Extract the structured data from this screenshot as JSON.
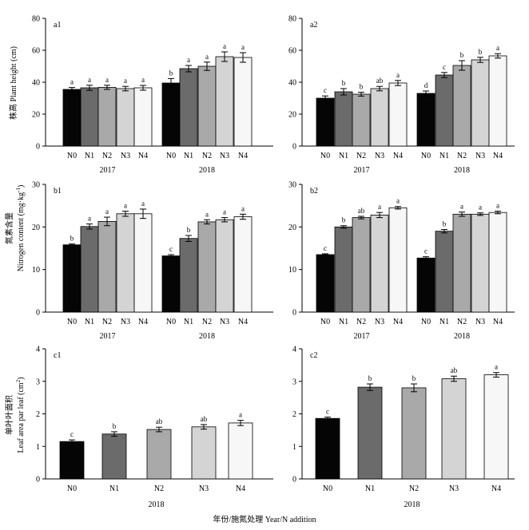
{
  "xlabel": "年份/施氮处理 Year/N addition",
  "rows": [
    {
      "ylabel_cn": "株高 Plant height (cm)",
      "ylabel_en": "",
      "ylabel_unit": "",
      "ylabel_sup": ""
    },
    {
      "ylabel_cn": "氮素含量",
      "ylabel_en": "Nitrogen content (mg·kg",
      "ylabel_unit": ")",
      "ylabel_sup": "-1"
    },
    {
      "ylabel_cn": "单叶叶面积",
      "ylabel_en": "Leaf area par leaf (cm",
      "ylabel_unit": ")",
      "ylabel_sup": "2"
    }
  ],
  "colors": [
    "#050505",
    "#6b6b6b",
    "#a9a9a9",
    "#d4d4d4",
    "#f7f7f7"
  ],
  "chart_data": [
    {
      "type": "bar",
      "panel": "a1",
      "ylim": [
        0,
        80
      ],
      "yticks": [
        0,
        20,
        40,
        60,
        80
      ],
      "groups": [
        {
          "year": "2017",
          "categories": [
            "N0",
            "N1",
            "N2",
            "N3",
            "N4"
          ],
          "values": [
            35.5,
            36.5,
            36.8,
            36.0,
            36.5
          ],
          "errors": [
            1.2,
            1.6,
            1.3,
            1.4,
            1.5
          ],
          "letters": [
            "a",
            "a",
            "a",
            "a",
            "a"
          ]
        },
        {
          "year": "2018",
          "categories": [
            "N0",
            "N1",
            "N2",
            "N3",
            "N4"
          ],
          "values": [
            39.5,
            48.5,
            50.0,
            56.0,
            55.5
          ],
          "errors": [
            2.8,
            2.0,
            2.6,
            3.0,
            3.0
          ],
          "letters": [
            "b",
            "a",
            "a",
            "a",
            "a"
          ]
        }
      ]
    },
    {
      "type": "bar",
      "panel": "a2",
      "ylim": [
        0,
        80
      ],
      "yticks": [
        0,
        20,
        40,
        60,
        80
      ],
      "groups": [
        {
          "year": "2017",
          "categories": [
            "N0",
            "N1",
            "N2",
            "N3",
            "N4"
          ],
          "values": [
            30.0,
            34.0,
            32.5,
            36.0,
            39.5
          ],
          "errors": [
            1.4,
            2.0,
            1.2,
            1.4,
            1.6
          ],
          "letters": [
            "c",
            "b",
            "b",
            "ab",
            "a"
          ]
        },
        {
          "year": "2018",
          "categories": [
            "N0",
            "N1",
            "N2",
            "N3",
            "N4"
          ],
          "values": [
            33.0,
            44.5,
            50.5,
            54.0,
            56.5
          ],
          "errors": [
            1.5,
            1.6,
            3.0,
            1.6,
            1.4
          ],
          "letters": [
            "d",
            "c",
            "b",
            "b",
            "a"
          ]
        }
      ]
    },
    {
      "type": "bar",
      "panel": "b1",
      "ylim": [
        0,
        30
      ],
      "yticks": [
        0,
        10,
        20,
        30
      ],
      "groups": [
        {
          "year": "2017",
          "categories": [
            "N0",
            "N1",
            "N2",
            "N3",
            "N4"
          ],
          "values": [
            15.8,
            20.1,
            21.3,
            23.1,
            23.1
          ],
          "errors": [
            0.2,
            0.6,
            1.0,
            0.6,
            1.1
          ],
          "letters": [
            "b",
            "a",
            "a",
            "a",
            "a"
          ]
        },
        {
          "year": "2018",
          "categories": [
            "N0",
            "N1",
            "N2",
            "N3",
            "N4"
          ],
          "values": [
            13.2,
            17.3,
            21.2,
            21.7,
            22.4
          ],
          "errors": [
            0.3,
            0.7,
            0.5,
            0.5,
            0.6
          ],
          "letters": [
            "c",
            "b",
            "a",
            "a",
            "a"
          ]
        }
      ]
    },
    {
      "type": "bar",
      "panel": "b2",
      "ylim": [
        0,
        30
      ],
      "yticks": [
        0,
        10,
        20,
        30
      ],
      "groups": [
        {
          "year": "2017",
          "categories": [
            "N0",
            "N1",
            "N2",
            "N3",
            "N4"
          ],
          "values": [
            13.5,
            20.0,
            22.2,
            22.8,
            24.5
          ],
          "errors": [
            0.2,
            0.3,
            0.3,
            0.6,
            0.3
          ],
          "letters": [
            "c",
            "b",
            "ab",
            "a",
            "a"
          ]
        },
        {
          "year": "2018",
          "categories": [
            "N0",
            "N1",
            "N2",
            "N3",
            "N4"
          ],
          "values": [
            12.7,
            19.0,
            23.0,
            23.0,
            23.4
          ],
          "errors": [
            0.3,
            0.4,
            0.5,
            0.3,
            0.3
          ],
          "letters": [
            "c",
            "b",
            "a",
            "a",
            "a"
          ]
        }
      ]
    },
    {
      "type": "bar",
      "panel": "c1",
      "ylim": [
        0,
        4
      ],
      "yticks": [
        0,
        1,
        2,
        3,
        4
      ],
      "groups": [
        {
          "year": "2018",
          "categories": [
            "N0",
            "N1",
            "N2",
            "N3",
            "N4"
          ],
          "values": [
            1.15,
            1.38,
            1.52,
            1.6,
            1.72
          ],
          "errors": [
            0.05,
            0.07,
            0.07,
            0.07,
            0.08
          ],
          "letters": [
            "c",
            "b",
            "ab",
            "ab",
            "a"
          ]
        }
      ]
    },
    {
      "type": "bar",
      "panel": "c2",
      "ylim": [
        0,
        4
      ],
      "yticks": [
        0,
        1,
        2,
        3,
        4
      ],
      "groups": [
        {
          "year": "2018",
          "categories": [
            "N0",
            "N1",
            "N2",
            "N3",
            "N4"
          ],
          "values": [
            1.86,
            2.82,
            2.8,
            3.08,
            3.2
          ],
          "errors": [
            0.04,
            0.1,
            0.12,
            0.08,
            0.07
          ],
          "letters": [
            "c",
            "b",
            "b",
            "ab",
            "a"
          ]
        }
      ]
    }
  ]
}
